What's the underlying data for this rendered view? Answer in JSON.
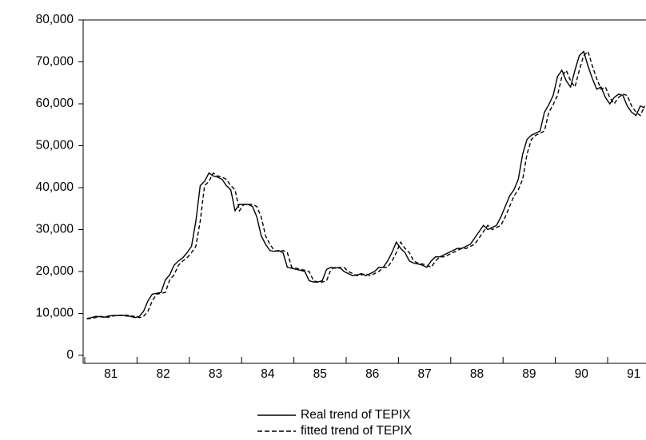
{
  "chart_data": {
    "type": "line",
    "categories": [
      null,
      null,
      null,
      null,
      null,
      "81",
      null,
      null,
      null,
      null,
      null,
      null,
      null,
      null,
      null,
      null,
      null,
      "82",
      null,
      null,
      null,
      null,
      null,
      null,
      null,
      null,
      null,
      null,
      null,
      "83",
      null,
      null,
      null,
      null,
      null,
      null,
      null,
      null,
      null,
      null,
      null,
      "84",
      null,
      null,
      null,
      null,
      null,
      null,
      null,
      null,
      null,
      null,
      null,
      "85",
      null,
      null,
      null,
      null,
      null,
      null,
      null,
      null,
      null,
      null,
      null,
      "86",
      null,
      null,
      null,
      null,
      null,
      null,
      null,
      null,
      null,
      null,
      null,
      "87",
      null,
      null,
      null,
      null,
      null,
      null,
      null,
      null,
      null,
      null,
      null,
      "88",
      null,
      null,
      null,
      null,
      null,
      null,
      null,
      null,
      null,
      null,
      null,
      "89",
      null,
      null,
      null,
      null,
      null,
      null,
      null,
      null,
      null,
      null,
      null,
      "90",
      null,
      null,
      null,
      null,
      null,
      null,
      null,
      null,
      null,
      null,
      null,
      "91",
      null,
      null,
      null
    ],
    "series": [
      {
        "name": "Real trend of TEPIX",
        "color": "#000000",
        "style": "solid",
        "values": [
          8800,
          9000,
          9300,
          9200,
          9100,
          9400,
          9500,
          9500,
          9600,
          9400,
          9300,
          9000,
          9300,
          10500,
          13000,
          14600,
          14800,
          15000,
          18000,
          19200,
          21500,
          22500,
          23300,
          24500,
          26000,
          32000,
          40500,
          41500,
          43500,
          42800,
          42500,
          42000,
          40500,
          39500,
          34500,
          36000,
          36000,
          36000,
          35500,
          33000,
          28500,
          26500,
          25000,
          24800,
          25000,
          24500,
          21000,
          20800,
          20500,
          20300,
          20000,
          17800,
          17500,
          17500,
          17800,
          20500,
          21000,
          20800,
          21000,
          20000,
          19500,
          19000,
          19200,
          19500,
          19000,
          19500,
          20000,
          21000,
          21000,
          22500,
          24500,
          27000,
          25500,
          24500,
          22500,
          22000,
          21800,
          21500,
          21000,
          22500,
          23500,
          23500,
          24000,
          24500,
          25000,
          25500,
          25500,
          26000,
          26500,
          28000,
          29500,
          31000,
          30000,
          30500,
          31000,
          33000,
          35500,
          38000,
          39500,
          42000,
          48000,
          51500,
          52500,
          53000,
          53500,
          58000,
          59800,
          62000,
          66500,
          68000,
          65500,
          64000,
          68000,
          71500,
          72500,
          69000,
          66000,
          63500,
          64000,
          61500,
          60000,
          61500,
          62300,
          62000,
          59500,
          58000,
          57200,
          59500,
          59000
        ]
      },
      {
        "name": "fitted trend of TEPIX",
        "color": "#000000",
        "style": "dashed",
        "values": [
          8700,
          8800,
          9000,
          9300,
          9200,
          9100,
          9400,
          9500,
          9500,
          9600,
          9400,
          9300,
          9000,
          9300,
          10500,
          13000,
          14600,
          14800,
          15000,
          18000,
          19200,
          21500,
          22500,
          23300,
          24500,
          26000,
          32000,
          40500,
          41500,
          43500,
          42800,
          42500,
          42000,
          40500,
          39500,
          34500,
          36000,
          36000,
          36000,
          35500,
          33000,
          28500,
          26500,
          25000,
          24800,
          25000,
          24500,
          21000,
          20800,
          20500,
          20300,
          20000,
          17800,
          17500,
          17500,
          17800,
          20500,
          21000,
          20800,
          21000,
          20000,
          19500,
          19000,
          19200,
          19500,
          19000,
          19500,
          20000,
          21000,
          21000,
          22500,
          24500,
          27000,
          25500,
          24500,
          22500,
          22000,
          21800,
          21500,
          21000,
          22500,
          23500,
          23500,
          24000,
          24500,
          25000,
          25500,
          25500,
          26000,
          26500,
          28000,
          29500,
          31000,
          30000,
          30500,
          31000,
          33000,
          35500,
          38000,
          39500,
          42000,
          48000,
          51500,
          52500,
          53000,
          53500,
          58000,
          59800,
          62000,
          66500,
          68000,
          65500,
          64000,
          68000,
          71500,
          72500,
          69000,
          66000,
          63500,
          64000,
          61500,
          60000,
          61500,
          62300,
          62000,
          59500,
          58000,
          57200,
          59500
        ]
      }
    ],
    "ylim": [
      0,
      80000
    ],
    "yticks": [
      0,
      {
        "value": 10000,
        "label": "10,000"
      },
      {
        "value": 20000,
        "label": "20,000"
      },
      {
        "value": 30000,
        "label": "30,000"
      },
      {
        "value": 40000,
        "label": "40,000"
      },
      {
        "value": 50000,
        "label": "50,000"
      },
      {
        "value": 60000,
        "label": "60,000"
      },
      {
        "value": 70000,
        "label": "70,000"
      },
      {
        "value": 80000,
        "label": "80,000"
      }
    ],
    "legend": "bottom"
  }
}
